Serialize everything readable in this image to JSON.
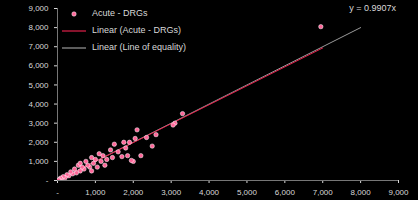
{
  "chart_data": {
    "type": "scatter",
    "annotation": "y = 0.9907x",
    "legend": "top-left",
    "grid": false,
    "xlim": [
      0,
      9000
    ],
    "ylim": [
      0,
      9000
    ],
    "xticks": [
      {
        "value": 0,
        "label": "-"
      },
      {
        "value": 1000,
        "label": "1,000"
      },
      {
        "value": 2000,
        "label": "2,000"
      },
      {
        "value": 3000,
        "label": "3,000"
      },
      {
        "value": 4000,
        "label": "4,000"
      },
      {
        "value": 5000,
        "label": "5,000"
      },
      {
        "value": 6000,
        "label": "6,000"
      },
      {
        "value": 7000,
        "label": "7,000"
      },
      {
        "value": 8000,
        "label": "8,000"
      },
      {
        "value": 9000,
        "label": "9,000"
      }
    ],
    "yticks": [
      {
        "value": 0,
        "label": "-"
      },
      {
        "value": 1000,
        "label": "1,000"
      },
      {
        "value": 2000,
        "label": "2,000"
      },
      {
        "value": 3000,
        "label": "3,000"
      },
      {
        "value": 4000,
        "label": "4,000"
      },
      {
        "value": 5000,
        "label": "5,000"
      },
      {
        "value": 6000,
        "label": "6,000"
      },
      {
        "value": 7000,
        "label": "7,000"
      },
      {
        "value": 8000,
        "label": "8,000"
      },
      {
        "value": 9000,
        "label": "9,000"
      }
    ],
    "series": [
      {
        "name": "Acute - DRGs",
        "type": "scatter",
        "color": "#ff6699",
        "marker": "circle",
        "x": [
          6950,
          3300,
          3100,
          3050,
          2600,
          2350,
          2200,
          2100,
          2050,
          2000,
          1950,
          1900,
          1800,
          1750,
          1700,
          1600,
          1500,
          1450,
          1400,
          1300,
          1200,
          1150,
          1100,
          1050,
          1000,
          950,
          900,
          850,
          800,
          750,
          700,
          650,
          600,
          550,
          500,
          450,
          400,
          350,
          300,
          250,
          200,
          150,
          100,
          80,
          50,
          30,
          600,
          900,
          1250,
          2500,
          1850
        ],
        "values": [
          8050,
          3500,
          3000,
          2900,
          2400,
          2250,
          1300,
          2650,
          2200,
          1000,
          1050,
          2000,
          1700,
          2000,
          1250,
          1500,
          1900,
          1200,
          1600,
          1100,
          1300,
          1000,
          1400,
          700,
          1100,
          900,
          1200,
          700,
          800,
          1000,
          600,
          700,
          500,
          800,
          400,
          600,
          350,
          450,
          250,
          300,
          150,
          200,
          80,
          120,
          40,
          20,
          900,
          500,
          800,
          1800,
          1300
        ]
      },
      {
        "name": "Linear (Acute - DRGs)",
        "type": "line",
        "color": "#e0204a",
        "line_style": "solid",
        "x": [
          0,
          7000
        ],
        "values": [
          0,
          6935
        ]
      },
      {
        "name": "Linear (Line of equality)",
        "type": "line",
        "color": "#9a9a9a",
        "line_style": "solid",
        "x": [
          0,
          8000
        ],
        "values": [
          0,
          8000
        ]
      }
    ]
  }
}
